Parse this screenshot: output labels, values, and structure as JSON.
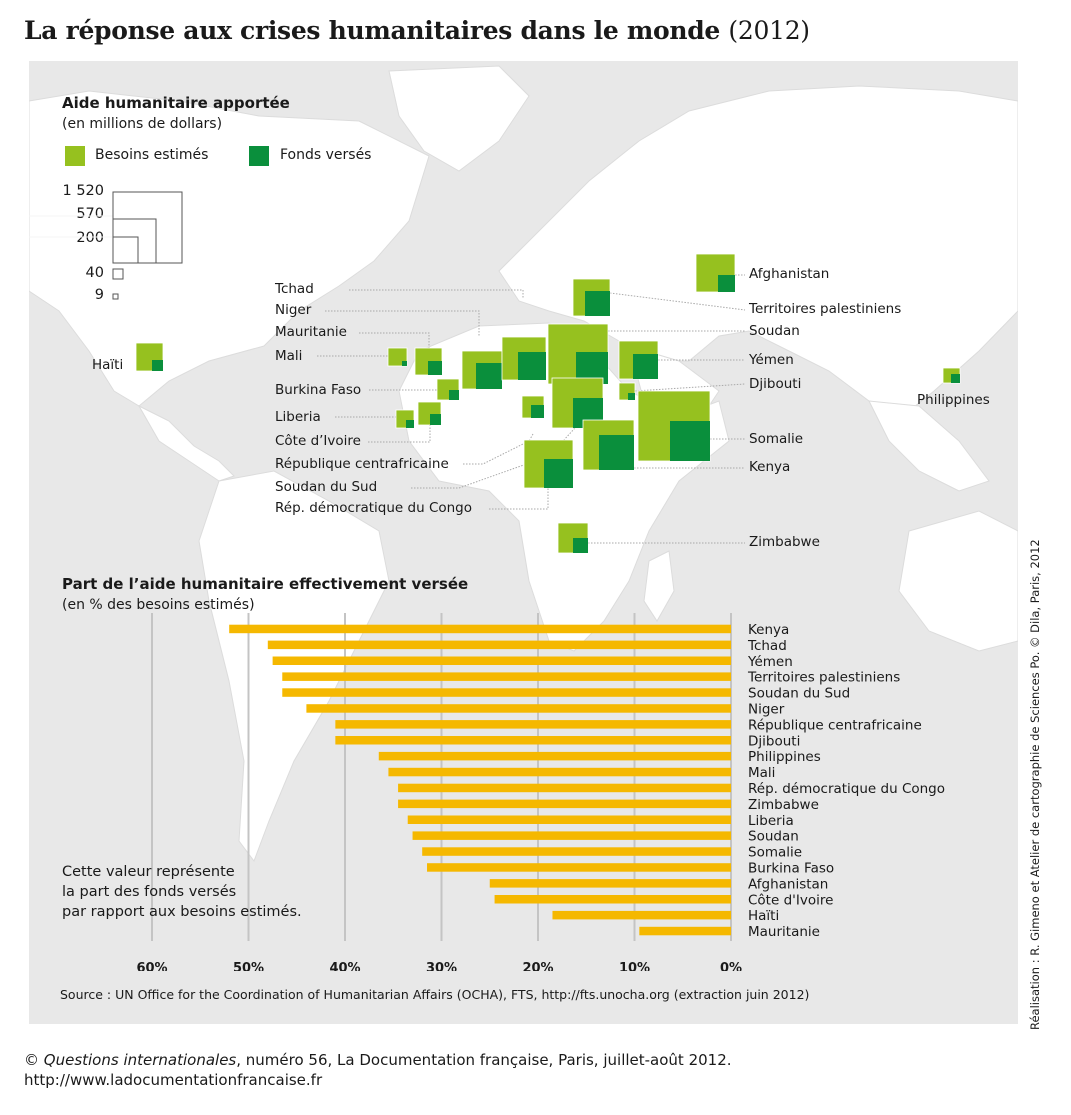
{
  "title": {
    "main": "La réponse aux crises humanitaires dans le monde",
    "year": "(2012)"
  },
  "map": {
    "heading": "Aide humanitaire apportée",
    "subheading": "(en millions de dollars)",
    "legend": [
      {
        "label": "Besoins estimés",
        "color": "#96c11f"
      },
      {
        "label": "Fonds versés",
        "color": "#0a8f3c"
      }
    ],
    "scale_values": [
      "1 520",
      "570",
      "200",
      "40",
      "9"
    ],
    "countries": [
      {
        "name": "Haïti"
      },
      {
        "name": "Tchad"
      },
      {
        "name": "Niger"
      },
      {
        "name": "Mauritanie"
      },
      {
        "name": "Mali"
      },
      {
        "name": "Burkina Faso"
      },
      {
        "name": "Liberia"
      },
      {
        "name": "Côte d’Ivoire"
      },
      {
        "name": "République centrafricaine"
      },
      {
        "name": "Soudan du Sud"
      },
      {
        "name": "Rép. démocratique du Congo"
      },
      {
        "name": "Afghanistan"
      },
      {
        "name": "Territoires palestiniens"
      },
      {
        "name": "Soudan"
      },
      {
        "name": "Yémen"
      },
      {
        "name": "Djibouti"
      },
      {
        "name": "Somalie"
      },
      {
        "name": "Kenya"
      },
      {
        "name": "Zimbabwe"
      },
      {
        "name": "Philippines"
      }
    ]
  },
  "chart_data": {
    "type": "bar",
    "title": "Part de l’aide humanitaire effectivement versée",
    "subtitle": "(en % des besoins estimés)",
    "orientation": "horizontal",
    "bar_color": "#f5b800",
    "categories": [
      "Kenya",
      "Tchad",
      "Yémen",
      "Territoires palestiniens",
      "Soudan du Sud",
      "Niger",
      "République centrafricaine",
      "Djibouti",
      "Philippines",
      "Mali",
      "Rép. démocratique du Congo",
      "Zimbabwe",
      "Liberia",
      "Soudan",
      "Somalie",
      "Burkina Faso",
      "Afghanistan",
      "Côte d'Ivoire",
      "Haïti",
      "Mauritanie"
    ],
    "values": [
      52,
      48,
      47.5,
      46.5,
      46.5,
      44,
      41,
      41,
      36.5,
      35.5,
      34.5,
      34.5,
      33.5,
      33,
      32,
      31.5,
      25,
      24.5,
      18.5,
      9.5
    ],
    "xlim": [
      60,
      0
    ],
    "ticks": [
      "60%",
      "50%",
      "40%",
      "30%",
      "20%",
      "10%",
      "0%"
    ],
    "grid": true
  },
  "note": [
    "Cette valeur représente",
    "la part des fonds versés",
    "par rapport aux besoins estimés."
  ],
  "source": "Source : UN Office for the Coordination of Humanitarian Affairs (OCHA), FTS, http://fts.unocha.org (extraction juin 2012)",
  "credit": "Réalisation : R. Gimeno et Atelier de cartographie de Sciences Po. © Dila, Paris, 2012",
  "copyright": {
    "symbol": "©",
    "publication": "Questions internationales",
    "rest": ", numéro 56, La Documentation française, Paris, juillet-août 2012.",
    "url": "http://www.ladocumentationfrancaise.fr"
  }
}
